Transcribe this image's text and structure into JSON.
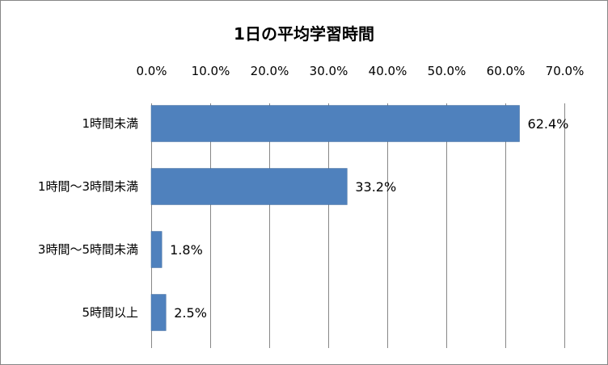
{
  "chart_data": {
    "type": "bar",
    "orientation": "horizontal",
    "title": "1日の平均学習時間",
    "categories": [
      "1時間未満",
      "1時間～3時間未満",
      "3時間～5時間未満",
      "5時間以上"
    ],
    "values": [
      62.4,
      33.2,
      1.8,
      2.5
    ],
    "data_labels": [
      "62.4%",
      "33.2%",
      "1.8%",
      "2.5%"
    ],
    "xticks": [
      "0.0%",
      "10.0%",
      "20.0%",
      "30.0%",
      "40.0%",
      "50.0%",
      "60.0%",
      "70.0%"
    ],
    "xlim": [
      0,
      70
    ],
    "x_axis_position": "top",
    "grid": true,
    "legend": false,
    "bar_color": "#4f81bd"
  }
}
